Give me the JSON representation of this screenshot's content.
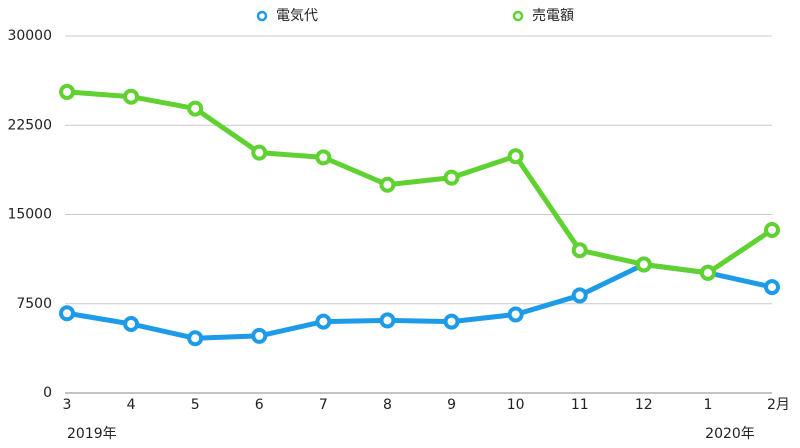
{
  "chart_data": {
    "type": "line",
    "categories": [
      "3",
      "4",
      "5",
      "6",
      "7",
      "8",
      "9",
      "10",
      "11",
      "12",
      "1",
      "2月"
    ],
    "annotations": [
      "2019年",
      "2020年"
    ],
    "series": [
      {
        "name": "電気代",
        "color": "#1e9be8",
        "values": [
          6700,
          5800,
          4600,
          4800,
          6000,
          6100,
          6000,
          6600,
          8200,
          10800,
          10100,
          8900
        ]
      },
      {
        "name": "売電額",
        "color": "#5fd130",
        "values": [
          25300,
          24900,
          23900,
          20200,
          19800,
          17500,
          18100,
          19900,
          12000,
          10800,
          10100,
          13700
        ]
      }
    ],
    "ylim": [
      0,
      30000
    ],
    "yticks": [
      0,
      7500,
      15000,
      22500,
      30000
    ],
    "grid": true
  }
}
